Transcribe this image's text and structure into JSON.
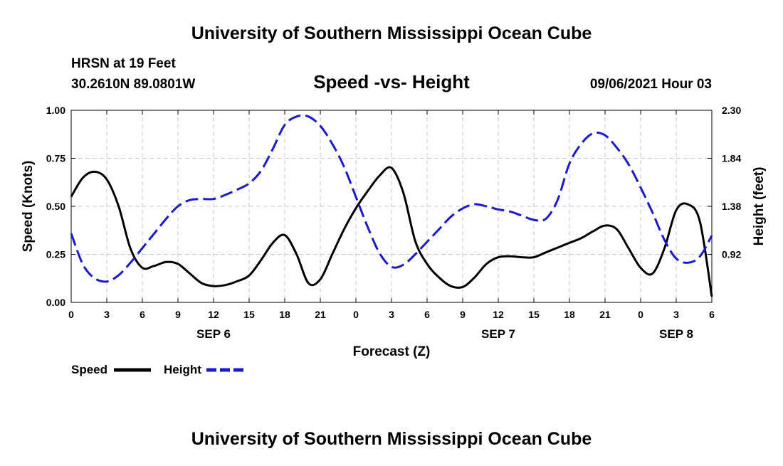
{
  "header": {
    "title_top": "University of Southern Mississippi Ocean Cube",
    "station": "HRSN at 19 Feet",
    "coords": "30.2610N  89.0801W",
    "subtitle": "Speed -vs- Height",
    "datetime": "09/06/2021 Hour 03",
    "title_bottom": "University of Southern Mississippi Ocean Cube"
  },
  "legend": {
    "speed_label": "Speed",
    "height_label": "Height"
  },
  "colors": {
    "speed": "#000000",
    "height": "#1a1acc",
    "grid": "#c8c8c8"
  },
  "chart_data": {
    "type": "line",
    "title": "Speed -vs- Height",
    "xlabel": "Forecast (Z)",
    "ylabel_left": "Speed (Knots)",
    "ylabel_right": "Height (feet)",
    "xlim": [
      0,
      54
    ],
    "ylim_left": [
      0,
      1
    ],
    "ylim_right": [
      0.46,
      2.3
    ],
    "grid": true,
    "legend_position": "bottom-left",
    "x_ticks": [
      0,
      3,
      6,
      9,
      12,
      15,
      18,
      21,
      24,
      27,
      30,
      33,
      36,
      39,
      42,
      45,
      48,
      51,
      54
    ],
    "x_tick_labels": [
      "0",
      "3",
      "6",
      "9",
      "12",
      "15",
      "18",
      "21",
      "0",
      "3",
      "6",
      "9",
      "12",
      "15",
      "18",
      "21",
      "0",
      "3",
      "6"
    ],
    "y_left_ticks": [
      0,
      0.25,
      0.5,
      0.75,
      1.0
    ],
    "y_left_tick_labels": [
      "0.00",
      "0.25",
      "0.50",
      "0.75",
      "1.00"
    ],
    "y_right_ticks": [
      0.92,
      1.38,
      1.84,
      2.3
    ],
    "y_right_tick_labels": [
      "0.92",
      "1.38",
      "1.84",
      "2.30"
    ],
    "day_labels": [
      {
        "x": 12,
        "label": "SEP 6"
      },
      {
        "x": 36,
        "label": "SEP 7"
      },
      {
        "x": 51,
        "label": "SEP 8"
      }
    ],
    "series": [
      {
        "name": "Speed",
        "axis": "left",
        "style": "solid",
        "x": [
          0,
          1,
          2,
          3,
          4,
          5,
          6,
          7,
          8,
          9,
          10,
          11,
          12,
          13,
          14,
          15,
          16,
          17,
          18,
          19,
          20,
          21,
          22,
          23,
          24,
          25,
          26,
          27,
          28,
          29,
          30,
          31,
          32,
          33,
          34,
          35,
          36,
          37,
          38,
          39,
          40,
          41,
          42,
          43,
          44,
          45,
          46,
          47,
          48,
          49,
          50,
          51,
          52,
          53,
          54
        ],
        "values": [
          0.55,
          0.65,
          0.68,
          0.64,
          0.5,
          0.28,
          0.18,
          0.19,
          0.21,
          0.2,
          0.15,
          0.1,
          0.085,
          0.09,
          0.11,
          0.14,
          0.22,
          0.31,
          0.35,
          0.25,
          0.1,
          0.12,
          0.25,
          0.38,
          0.49,
          0.58,
          0.66,
          0.7,
          0.57,
          0.32,
          0.2,
          0.13,
          0.085,
          0.08,
          0.13,
          0.2,
          0.235,
          0.24,
          0.235,
          0.235,
          0.26,
          0.285,
          0.31,
          0.335,
          0.37,
          0.4,
          0.38,
          0.28,
          0.18,
          0.15,
          0.28,
          0.48,
          0.51,
          0.42,
          0.03
        ]
      },
      {
        "name": "Height",
        "axis": "right",
        "style": "dashed",
        "x": [
          0,
          1,
          2,
          3,
          4,
          5,
          6,
          7,
          8,
          9,
          10,
          11,
          12,
          13,
          14,
          15,
          16,
          17,
          18,
          19,
          20,
          21,
          22,
          23,
          24,
          25,
          26,
          27,
          28,
          29,
          30,
          31,
          32,
          33,
          34,
          35,
          36,
          37,
          38,
          39,
          40,
          41,
          42,
          43,
          44,
          45,
          46,
          47,
          48,
          49,
          50,
          51,
          52,
          53,
          54
        ],
        "values": [
          1.12,
          0.82,
          0.69,
          0.66,
          0.72,
          0.84,
          0.98,
          1.12,
          1.26,
          1.38,
          1.44,
          1.45,
          1.45,
          1.49,
          1.54,
          1.6,
          1.72,
          1.93,
          2.16,
          2.24,
          2.24,
          2.15,
          1.98,
          1.76,
          1.47,
          1.18,
          0.93,
          0.8,
          0.82,
          0.92,
          1.04,
          1.16,
          1.28,
          1.36,
          1.4,
          1.38,
          1.35,
          1.33,
          1.29,
          1.25,
          1.26,
          1.44,
          1.79,
          1.98,
          2.08,
          2.06,
          1.94,
          1.78,
          1.56,
          1.32,
          1.06,
          0.88,
          0.84,
          0.9,
          1.1
        ]
      }
    ]
  }
}
